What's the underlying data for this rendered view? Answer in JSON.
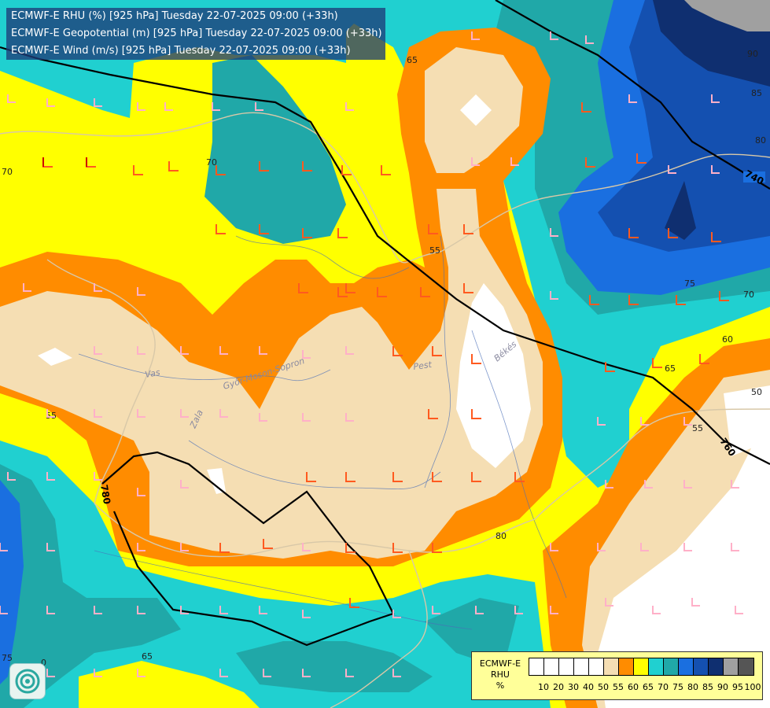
{
  "header": {
    "line1": "ECMWF-E RHU (%) [925 hPa] Tuesday 22-07-2025 09:00 (+33h)",
    "line2": "ECMWF-E Geopotential (m) [925 hPa] Tuesday 22-07-2025 09:00 (+33h)",
    "line3": "ECMWF-E Wind (m/s) [925 hPa] Tuesday 22-07-2025 09:00 (+33h)"
  },
  "legend": {
    "title1": "ECMWF-E",
    "title2": "RHU",
    "unit": "%",
    "levels": [
      "10",
      "20",
      "30",
      "40",
      "50",
      "55",
      "60",
      "65",
      "70",
      "75",
      "80",
      "85",
      "90",
      "95",
      "100"
    ],
    "colors": [
      "#ffffff",
      "#ffffff",
      "#ffffff",
      "#ffffff",
      "#ffffff",
      "#f5deb3",
      "#ff8c00",
      "#ffff00",
      "#20d0d0",
      "#20a8a8",
      "#1a6fe0",
      "#1450b0",
      "#0f2f70",
      "#a0a0a0",
      "#555555"
    ]
  },
  "colors": {
    "rh50_55": "#f5deb3",
    "rh55_60": "#ff8c00",
    "rh60_65": "#ffff00",
    "rh65_70": "#20d0d0",
    "rh70_75": "#20a8a8",
    "rh75_80": "#1a6fe0",
    "rh80_85": "#1450b0",
    "rh85_90": "#0f2f70",
    "rh90_95": "#a0a0a0"
  },
  "contour_labels": {
    "rh": [
      "90",
      "85",
      "80",
      "70",
      "65",
      "55",
      "75",
      "70",
      "60",
      "65",
      "50",
      "55",
      "80",
      "55",
      "65",
      "0",
      "75",
      "70"
    ],
    "geopotential": [
      "740",
      "760",
      "780"
    ]
  },
  "regions": [
    "Vas",
    "Zala",
    "Pest",
    "Békés",
    "Győr-Moson-Sopron"
  ],
  "logo": "ecmwf-swirl-logo"
}
